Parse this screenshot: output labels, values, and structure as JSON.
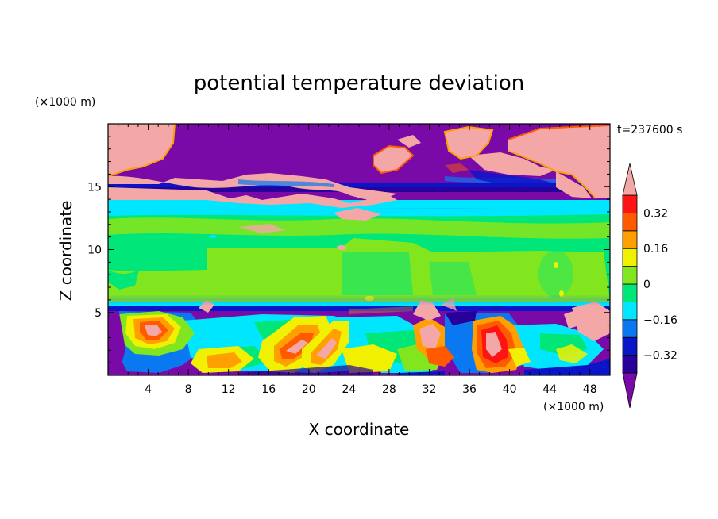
{
  "chart_data": {
    "type": "heatmap",
    "title": "potential temperature deviation",
    "xlabel": "X coordinate",
    "ylabel": "Z coordinate",
    "x_unit": "(×1000 m)",
    "y_unit": "(×1000 m)",
    "time_label": "t=237600 s",
    "xlim": [
      0,
      50
    ],
    "ylim": [
      0,
      20
    ],
    "x_ticks": [
      4,
      8,
      12,
      16,
      20,
      24,
      28,
      32,
      36,
      40,
      44,
      48
    ],
    "y_ticks": [
      5,
      10,
      15
    ],
    "colorbar": {
      "levels": [
        -0.4,
        -0.32,
        -0.24,
        -0.16,
        -0.08,
        0,
        0.08,
        0.16,
        0.24,
        0.32,
        0.4
      ],
      "labels": [
        -0.32,
        -0.16,
        0,
        0.16,
        0.32
      ],
      "colors": [
        "#7a0aa8",
        "#28009a",
        "#0a14c8",
        "#0a78f0",
        "#00e6ff",
        "#00e678",
        "#82e61e",
        "#f0f000",
        "#ffa000",
        "#ff5a00",
        "#ff1414",
        "#f4a7a7"
      ]
    }
  }
}
